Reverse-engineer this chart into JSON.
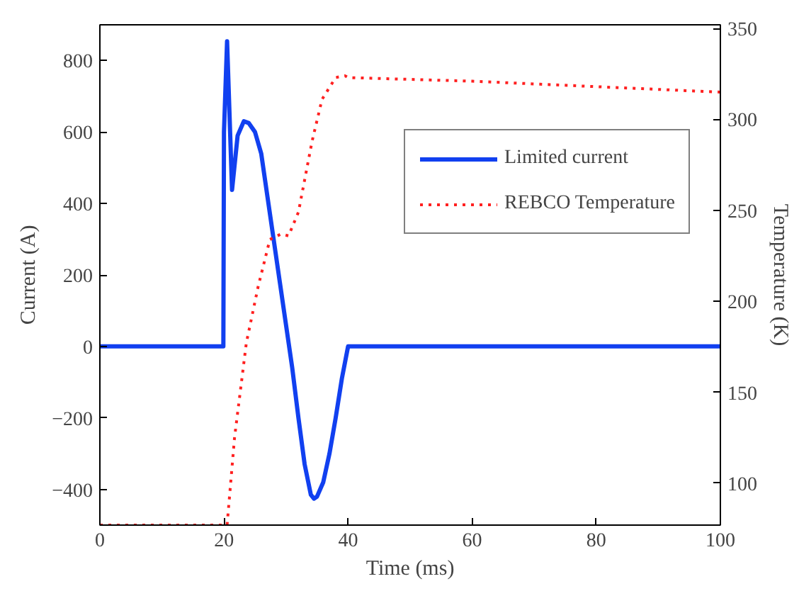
{
  "chart_data": {
    "type": "line",
    "xlabel": "Time (ms)",
    "ylabel": "Current (A)",
    "y2label": "Temperature (K)",
    "xlim": [
      0,
      100
    ],
    "xticks": [
      0,
      20,
      40,
      60,
      80,
      100
    ],
    "ylim": [
      -500,
      900
    ],
    "yticks": [
      -400,
      -200,
      0,
      200,
      400,
      600,
      800
    ],
    "y2lim": [
      77,
      352
    ],
    "y2ticks": [
      100,
      150,
      200,
      250,
      300,
      350
    ],
    "grid": false,
    "legend": "top right",
    "series": [
      {
        "name": "Limited current",
        "color": "#1140f0",
        "line_style": "solid",
        "x": [
          0,
          19.9,
          20.0,
          20.5,
          21.3,
          22.2,
          23.2,
          24,
          25,
          26,
          27,
          28,
          29,
          30,
          31,
          32,
          33,
          34,
          34.5,
          35,
          36,
          37,
          38,
          39,
          40,
          100
        ],
        "values": [
          0,
          0,
          600,
          854,
          438,
          590,
          630,
          625,
          600,
          540,
          420,
          300,
          180,
          60,
          -60,
          -200,
          -330,
          -415,
          -426,
          -420,
          -380,
          -300,
          -200,
          -90,
          0,
          0
        ]
      },
      {
        "name": "REBCO Temperature",
        "color": "#ff2020",
        "line_style": "dotted",
        "axis": "y2",
        "x": [
          0,
          20.5,
          21.7,
          23.6,
          25.5,
          27.4,
          29.2,
          30.4,
          32,
          34.2,
          35.8,
          38,
          39.5,
          40,
          60,
          80,
          100
        ],
        "values": [
          77,
          77,
          125,
          177,
          208,
          234,
          237,
          236,
          249,
          288,
          311,
          323,
          324,
          323,
          321,
          318,
          315
        ]
      }
    ]
  }
}
